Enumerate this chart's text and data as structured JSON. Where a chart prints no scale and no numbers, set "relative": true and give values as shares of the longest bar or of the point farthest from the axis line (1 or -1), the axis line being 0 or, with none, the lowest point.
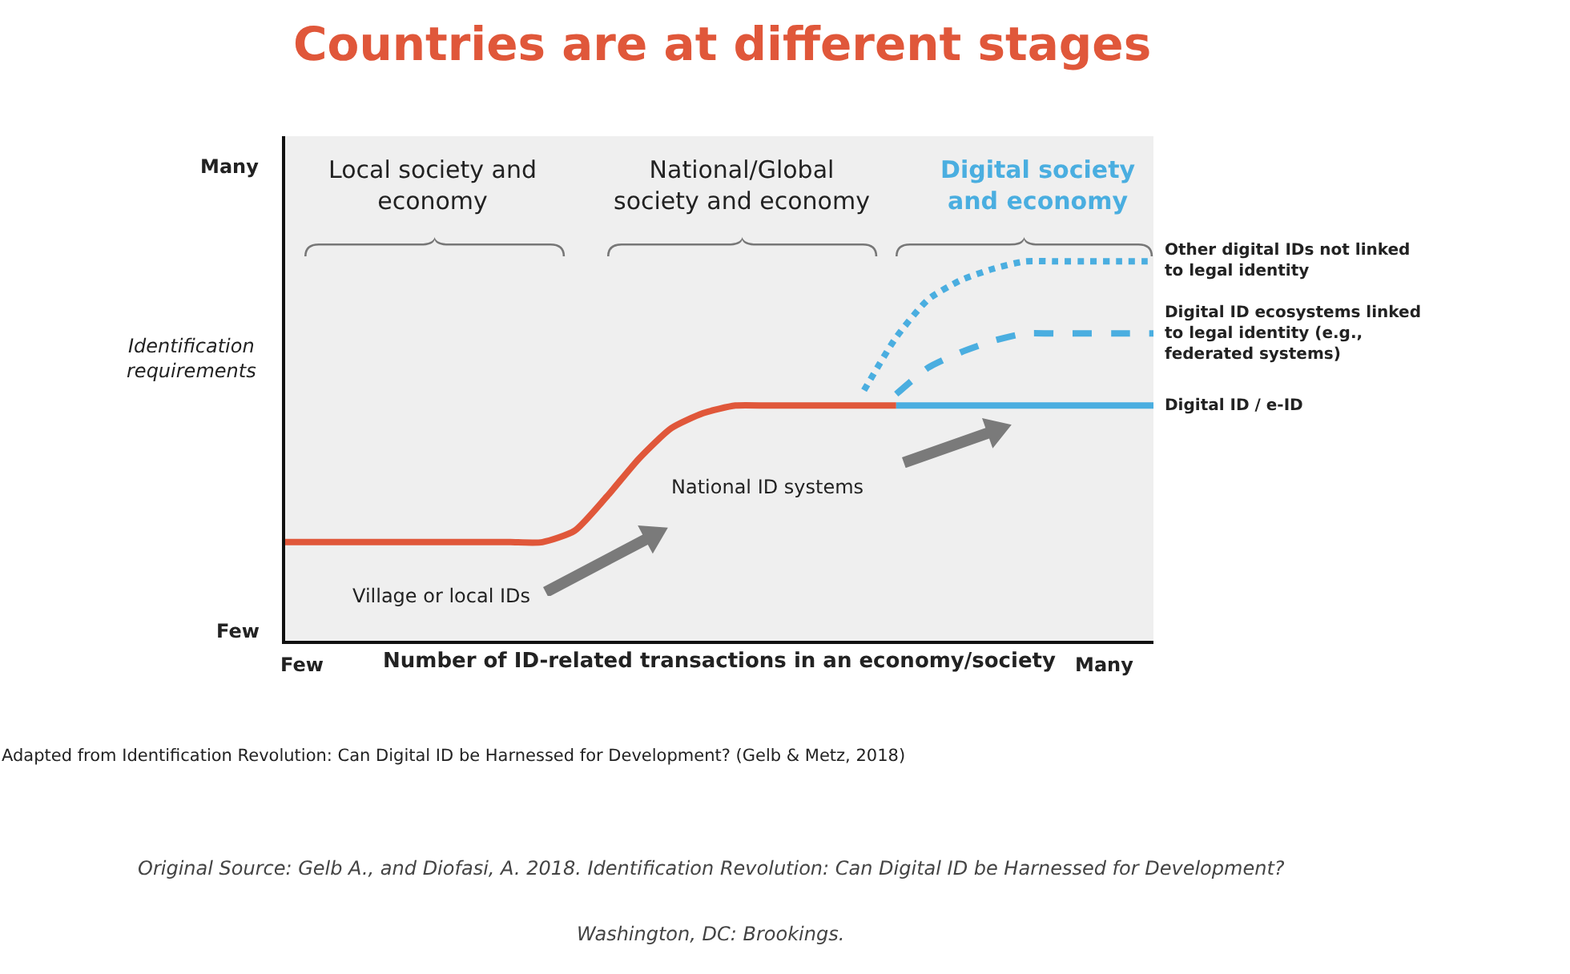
{
  "chart_data": {
    "type": "line",
    "relative": true,
    "title": "Countries are at different stages",
    "xlabel": "Number of ID-related transactions in an economy/society",
    "ylabel": "Identification requirements",
    "categories": [
      null,
      null,
      null,
      null,
      null,
      null,
      null,
      null,
      null,
      null,
      null,
      null,
      null,
      null,
      null,
      null,
      null,
      null,
      null,
      null,
      null,
      null,
      null,
      null,
      null,
      null,
      null,
      null
    ],
    "series": [
      {
        "color": "#e0573a",
        "line_style": "solid",
        "values": [
          0.26,
          0.26,
          0.26,
          0.26,
          0.26,
          0.26,
          0.26,
          0.26,
          0.26,
          0.29,
          0.38,
          0.48,
          0.56,
          0.6,
          0.62,
          0.62,
          0.62,
          0.62,
          0.62,
          0.62,
          null,
          null,
          null,
          null,
          null,
          null,
          null,
          null
        ]
      },
      {
        "name": "Digital ID / e-ID",
        "color": "#4aaee0",
        "line_style": "solid",
        "values": [
          null,
          null,
          null,
          null,
          null,
          null,
          null,
          null,
          null,
          null,
          null,
          null,
          null,
          null,
          null,
          null,
          null,
          null,
          null,
          0.62,
          0.62,
          0.62,
          0.62,
          0.62,
          0.62,
          0.62,
          0.62,
          0.62
        ]
      },
      {
        "name": "Digital ID ecosystems linked to legal identity (e.g., federated systems)",
        "color": "#4aaee0",
        "line_style": "dashed",
        "values": [
          null,
          null,
          null,
          null,
          null,
          null,
          null,
          null,
          null,
          null,
          null,
          null,
          null,
          null,
          null,
          null,
          null,
          null,
          null,
          0.65,
          0.72,
          0.76,
          0.79,
          0.81,
          0.81,
          0.81,
          0.81,
          0.81
        ]
      },
      {
        "name": "Other digital IDs not linked to legal identity",
        "color": "#4aaee0",
        "line_style": "dotted",
        "values": [
          null,
          null,
          null,
          null,
          null,
          null,
          null,
          null,
          null,
          null,
          null,
          null,
          null,
          null,
          null,
          null,
          null,
          null,
          0.66,
          0.8,
          0.9,
          0.95,
          0.98,
          1,
          1,
          1,
          1,
          1
        ]
      }
    ],
    "annotations": [
      "Few",
      "Many",
      "Few",
      "Many",
      "Local society and economy",
      "National/Global society and economy",
      "Digital society and economy",
      "National ID systems",
      "Village or local IDs",
      "Adapted from Identification Revolution: Can Digital ID be Harnessed for Development? (Gelb & Metz, 2018)",
      "Original Source: Gelb A., and Diofasi, A. 2018. Identification Revolution: Can Digital ID be Harnessed for Development?",
      "Washington, DC: Brookings."
    ],
    "grid": false,
    "legend": false
  }
}
